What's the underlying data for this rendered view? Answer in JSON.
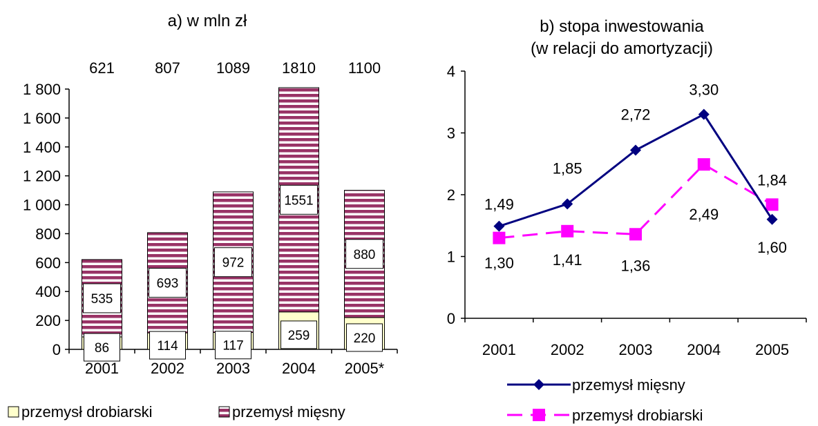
{
  "chart_data": [
    {
      "type": "bar",
      "stacked": true,
      "title": "a) w mln zł",
      "categories": [
        "2001",
        "2002",
        "2003",
        "2004",
        "2005*"
      ],
      "totals": [
        "621",
        "807",
        "1089",
        "1810",
        "1100"
      ],
      "ylim": [
        0,
        1800
      ],
      "yticks": [
        0,
        200,
        400,
        600,
        800,
        1000,
        1200,
        1400,
        1600,
        1800
      ],
      "ytick_labels": [
        "0",
        "200",
        "400",
        "600",
        "800",
        "1 000",
        "1 200",
        "1 400",
        "1 600",
        "1 800"
      ],
      "series": [
        {
          "name": "przemysł drobiarski",
          "values": [
            86,
            114,
            117,
            259,
            220
          ],
          "labels": [
            "86",
            "114",
            "117",
            "259",
            "220"
          ],
          "color": "#ffffcc"
        },
        {
          "name": "przemysł mięsny",
          "values": [
            535,
            693,
            972,
            1551,
            880
          ],
          "labels": [
            "535",
            "693",
            "972",
            "1551",
            "880"
          ],
          "color": "#993366"
        }
      ],
      "legend_position": "bottom",
      "grid": false
    },
    {
      "type": "line",
      "title": "b) stopa inwestowania",
      "subtitle": "(w relacji do amortyzacji)",
      "categories": [
        "2001",
        "2002",
        "2003",
        "2004",
        "2005"
      ],
      "ylim": [
        0,
        4
      ],
      "yticks": [
        0,
        1,
        2,
        3,
        4
      ],
      "ytick_labels": [
        "0",
        "1",
        "2",
        "3",
        "4"
      ],
      "series": [
        {
          "name": "przemysł mięsny",
          "values": [
            1.49,
            1.85,
            2.72,
            3.3,
            1.6
          ],
          "labels": [
            "1,49",
            "1,85",
            "2,72",
            "3,30",
            "1,60"
          ],
          "color": "#000080",
          "marker": "diamond",
          "dash": "solid"
        },
        {
          "name": "przemysł drobiarski",
          "values": [
            1.3,
            1.41,
            1.36,
            2.49,
            1.84
          ],
          "labels": [
            "1,30",
            "1,41",
            "1,36",
            "2,49",
            "1,84"
          ],
          "color": "#ff00ff",
          "marker": "square",
          "dash": "dashed"
        }
      ],
      "legend_position": "bottom",
      "grid": false
    }
  ]
}
